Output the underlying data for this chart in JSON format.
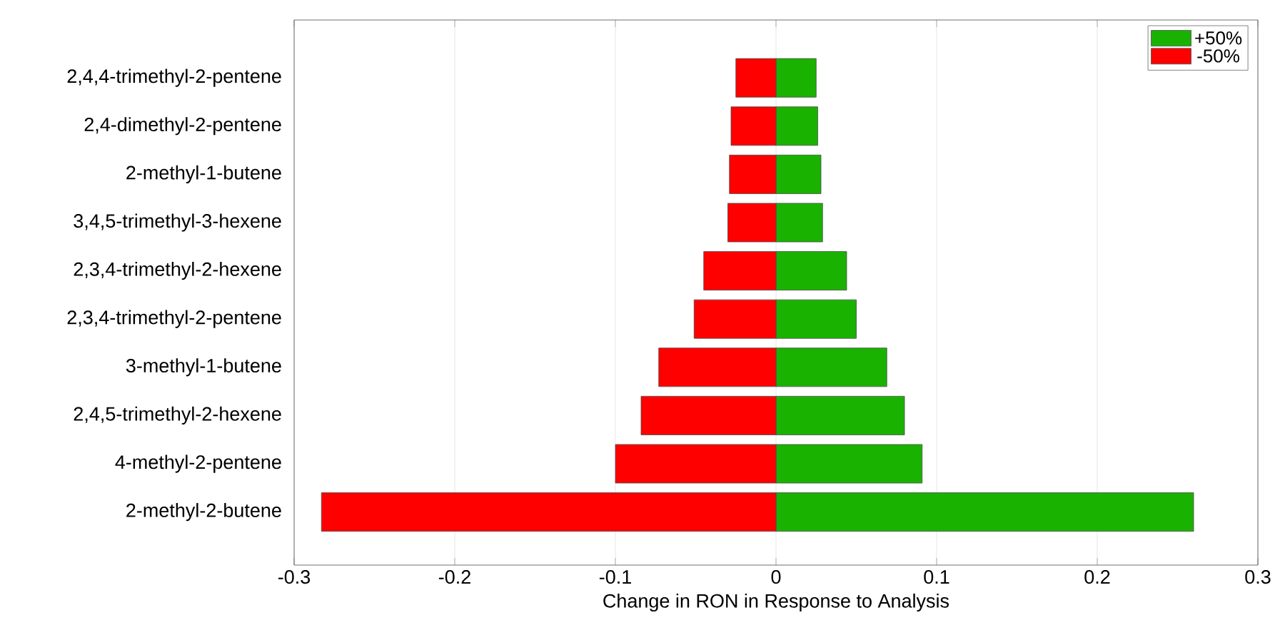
{
  "chart_data": {
    "type": "bar",
    "orientation": "horizontal",
    "xlabel": "Change in RON in Response to Analysis",
    "categories": [
      "2,4,4-trimethyl-2-pentene",
      "2,4-dimethyl-2-pentene",
      "2-methyl-1-butene",
      "3,4,5-trimethyl-3-hexene",
      "2,3,4-trimethyl-2-hexene",
      "2,3,4-trimethyl-2-pentene",
      "3-methyl-1-butene",
      "2,4,5-trimethyl-2-hexene",
      "4-methyl-2-pentene",
      "2-methyl-2-butene"
    ],
    "series": [
      {
        "name": "+50%",
        "color": "#1ab200",
        "values": [
          0.025,
          0.026,
          0.028,
          0.029,
          0.044,
          0.05,
          0.069,
          0.08,
          0.091,
          0.26
        ]
      },
      {
        "name": "-50%",
        "color": "#ff0000",
        "values": [
          -0.025,
          -0.028,
          -0.029,
          -0.03,
          -0.045,
          -0.051,
          -0.073,
          -0.084,
          -0.1,
          -0.283
        ]
      }
    ],
    "stacked": true,
    "xlim": [
      -0.3,
      0.3
    ],
    "xticks": [
      -0.3,
      -0.2,
      -0.1,
      0,
      0.1,
      0.2,
      0.3
    ],
    "grid": "x",
    "legend": "top right"
  }
}
